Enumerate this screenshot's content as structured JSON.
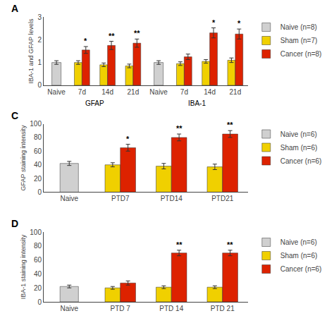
{
  "chart_data": [
    {
      "type": "bar",
      "title": "A",
      "categories": [
        "Naive",
        "7d",
        "14d",
        "21d",
        "Naive",
        "7d",
        "14d",
        "21d"
      ],
      "groups": [
        "GFAP",
        "GFAP",
        "GFAP",
        "GFAP",
        "IBA-1",
        "IBA-1",
        "IBA-1",
        "IBA-1"
      ],
      "series": [
        {
          "name": "Naive (n=8)",
          "color": "#d0d0d0",
          "values": [
            1.0,
            null,
            null,
            null,
            1.0,
            null,
            null,
            null
          ],
          "errors": [
            0.08,
            null,
            null,
            null,
            0.08,
            null,
            null,
            null
          ]
        },
        {
          "name": "Sham (n=7)",
          "color": "#f0d000",
          "values": [
            null,
            1.0,
            0.9,
            0.85,
            null,
            0.95,
            1.05,
            1.1
          ],
          "errors": [
            null,
            0.08,
            0.08,
            0.08,
            null,
            0.08,
            0.08,
            0.1
          ]
        },
        {
          "name": "Cancer (n=8)",
          "color": "#dd2200",
          "values": [
            null,
            1.55,
            1.75,
            1.85,
            null,
            1.25,
            2.3,
            2.25
          ],
          "errors": [
            null,
            0.15,
            0.18,
            0.18,
            null,
            0.12,
            0.22,
            0.22
          ],
          "significance": [
            null,
            "*",
            "**",
            "**",
            null,
            null,
            "*",
            "*"
          ]
        }
      ],
      "y_label": "IBA-1 and GFAP levels",
      "ylim": [
        0,
        3.0
      ],
      "yticks": [
        0,
        1,
        2,
        3
      ],
      "grid": false,
      "legend": "right"
    },
    {
      "type": "bar",
      "title": "C",
      "categories": [
        "Naive",
        "PTD7",
        "PTD14",
        "PTD21"
      ],
      "series": [
        {
          "name": "Naive (n=6)",
          "color": "#d0d0d0",
          "values": [
            42,
            null,
            null,
            null
          ],
          "errors": [
            3,
            null,
            null,
            null
          ]
        },
        {
          "name": "Sham (n=6)",
          "color": "#f0d000",
          "values": [
            null,
            40,
            38,
            37
          ],
          "errors": [
            null,
            3,
            4,
            4
          ]
        },
        {
          "name": "Cancer (n=6)",
          "color": "#dd2200",
          "values": [
            null,
            65,
            80,
            85
          ],
          "errors": [
            null,
            5,
            5,
            5
          ],
          "significance": [
            null,
            "*",
            "**",
            "**"
          ]
        }
      ],
      "y_label": "GFAP staining intensity",
      "ylim": [
        0,
        100
      ],
      "yticks": [
        0,
        20,
        40,
        60,
        80,
        100
      ],
      "grid": false,
      "legend": "right"
    },
    {
      "type": "bar",
      "title": "D",
      "categories": [
        "Naive",
        "PTD 7",
        "PTD 14",
        "PTD 21"
      ],
      "series": [
        {
          "name": "Naive (n=6)",
          "color": "#d0d0d0",
          "values": [
            22,
            null,
            null,
            null
          ],
          "errors": [
            2,
            null,
            null,
            null
          ]
        },
        {
          "name": "Sham (n=6)",
          "color": "#f0d000",
          "values": [
            null,
            20,
            21,
            21
          ],
          "errors": [
            null,
            2,
            2,
            2
          ]
        },
        {
          "name": "Cancer (n=6)",
          "color": "#dd2200",
          "values": [
            null,
            27,
            70,
            70
          ],
          "errors": [
            null,
            3,
            4,
            4
          ],
          "significance": [
            null,
            null,
            "**",
            "**"
          ]
        }
      ],
      "y_label": "IBA-1 staining intensity",
      "ylim": [
        0,
        100
      ],
      "yticks": [
        0,
        20,
        40,
        60,
        80,
        100
      ],
      "grid": false,
      "legend": "right"
    }
  ]
}
